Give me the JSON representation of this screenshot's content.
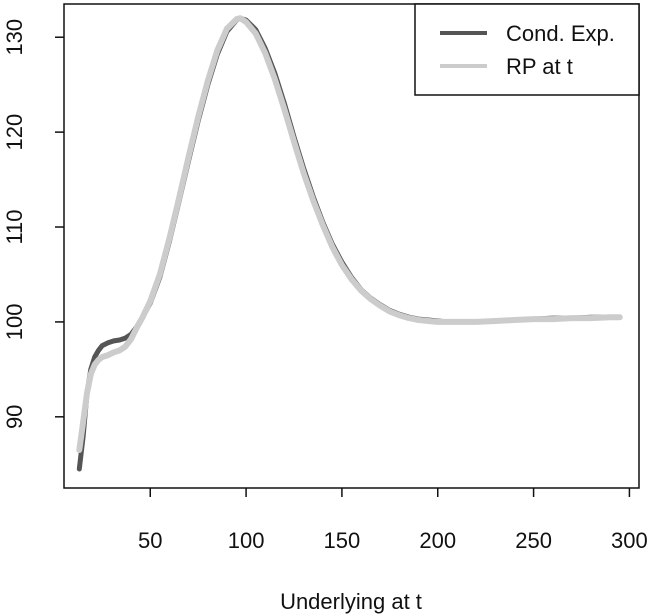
{
  "chart_data": {
    "type": "line",
    "title": "",
    "xlabel": "Underlying at t",
    "ylabel": "",
    "xlim": [
      5,
      305
    ],
    "ylim": [
      82.5,
      133.5
    ],
    "xticks": [
      50,
      100,
      150,
      200,
      250,
      300
    ],
    "yticks": [
      90,
      100,
      110,
      120,
      130
    ],
    "grid": false,
    "legend_position": "top-right",
    "series": [
      {
        "name": "Cond. Exp.",
        "color": "#555555",
        "x": [
          13,
          15,
          17,
          19,
          21,
          23,
          25,
          28,
          31,
          34,
          37,
          40,
          43,
          46,
          50,
          55,
          60,
          65,
          70,
          75,
          80,
          85,
          90,
          95,
          97,
          100,
          105,
          110,
          115,
          120,
          125,
          130,
          135,
          140,
          145,
          150,
          155,
          160,
          165,
          170,
          175,
          180,
          185,
          190,
          195,
          200,
          205,
          210,
          220,
          230,
          240,
          250,
          260,
          270,
          280,
          290,
          295
        ],
        "y": [
          84.5,
          88,
          92.5,
          95,
          96.3,
          97,
          97.5,
          97.8,
          98,
          98.1,
          98.3,
          98.7,
          99.5,
          100.5,
          102,
          104.7,
          108.5,
          112.7,
          117,
          121.2,
          125,
          128.2,
          130.6,
          131.8,
          132,
          131.8,
          130.8,
          128.8,
          126.2,
          123,
          119.5,
          116.2,
          113.2,
          110.5,
          108.2,
          106.3,
          104.7,
          103.4,
          102.5,
          101.8,
          101.2,
          100.8,
          100.5,
          100.3,
          100.2,
          100.1,
          100,
          100,
          100,
          100.1,
          100.2,
          100.3,
          100.4,
          100.4,
          100.5,
          100.5,
          100.5
        ]
      },
      {
        "name": "RP at t",
        "color": "#cccccc",
        "x": [
          13,
          15,
          17,
          19,
          21,
          23,
          25,
          28,
          31,
          34,
          37,
          40,
          43,
          46,
          50,
          55,
          60,
          65,
          70,
          75,
          80,
          85,
          90,
          95,
          97,
          100,
          105,
          110,
          115,
          120,
          125,
          130,
          135,
          140,
          145,
          150,
          155,
          160,
          165,
          170,
          175,
          180,
          185,
          190,
          195,
          200,
          205,
          210,
          220,
          230,
          240,
          250,
          260,
          270,
          280,
          290,
          295
        ],
        "y": [
          86.5,
          89.5,
          92.5,
          94.5,
          95.5,
          96,
          96.3,
          96.5,
          96.8,
          97,
          97.4,
          98.2,
          99.4,
          100.5,
          102.2,
          105,
          108.8,
          113,
          117.4,
          121.6,
          125.4,
          128.6,
          130.9,
          131.9,
          132,
          131.6,
          130.4,
          128.3,
          125.6,
          122.4,
          119,
          115.7,
          112.8,
          110.2,
          107.9,
          106,
          104.5,
          103.3,
          102.4,
          101.7,
          101.1,
          100.7,
          100.4,
          100.2,
          100.1,
          100,
          100,
          100,
          100,
          100.1,
          100.2,
          100.3,
          100.3,
          100.4,
          100.4,
          100.5,
          100.5
        ]
      }
    ]
  }
}
